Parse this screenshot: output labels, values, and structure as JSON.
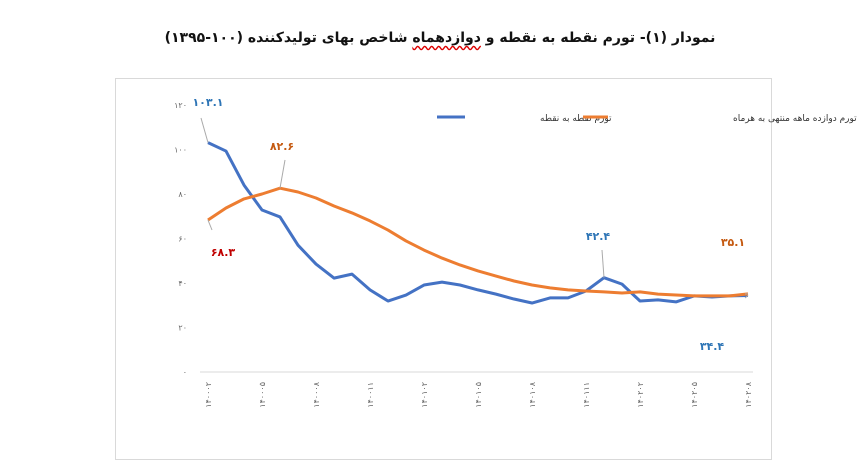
{
  "title": {
    "before": "نمودار (۱)- تورم نقطه به نقطه و ",
    "underlined": "دوازدهماه",
    "after": " شاخص بهای تولیدکننده (۱۰۰-۱۳۹۵)"
  },
  "chart_data": {
    "type": "line",
    "title": "نمودار (۱)- تورم نقطه به نقطه و دوازدهماه شاخص بهای تولیدکننده (۱۰۰-۱۳۹۵)",
    "ylim": [
      0,
      120
    ],
    "yticks": [
      "۰",
      "۲۰",
      "۴۰",
      "۶۰",
      "۸۰",
      "۱۰۰",
      "۱۲۰"
    ],
    "ytick_values": [
      0,
      20,
      40,
      60,
      80,
      100,
      120
    ],
    "x_count": 31,
    "xtick_labels": [
      "۱۴۰۰۰۲",
      "۱۴۰۰۰۵",
      "۱۴۰۰۰۸",
      "۱۴۰۰۱۱",
      "۱۴۰۱۰۲",
      "۱۴۰۱۰۵",
      "۱۴۰۱۰۸",
      "۱۴۰۱۱۱",
      "۱۴۰۲۰۲",
      "۱۴۰۲۰۵",
      "۱۴۰۲۰۸"
    ],
    "grid": false,
    "legend": "top-right",
    "series": [
      {
        "name": "تورم نقطه به نقطه",
        "color": "#4472c4",
        "values": [
          103.1,
          99.3,
          84,
          72.8,
          69.7,
          57,
          48.5,
          42.2,
          44,
          36.9,
          31.9,
          34.6,
          39.1,
          40.4,
          39.1,
          36.9,
          35,
          32.8,
          31,
          33.3,
          33.3,
          36.4,
          42.4,
          39.5,
          31.9,
          32.4,
          31.5,
          34.2,
          33.7,
          34.2,
          34.4
        ]
      },
      {
        "name": "تورم دوازده ماهه منتهی به هرماه",
        "color": "#ed7d31",
        "values": [
          68.3,
          73.7,
          77.8,
          80,
          82.6,
          80.9,
          78.2,
          74.6,
          71.5,
          67.9,
          63.8,
          58.9,
          54.8,
          51.2,
          48.1,
          45.4,
          43.1,
          40.9,
          39.1,
          37.8,
          36.9,
          36.4,
          36,
          35.5,
          36,
          35,
          34.6,
          34.2,
          34.2,
          34.2,
          35.1
        ]
      }
    ],
    "annotations": [
      {
        "text": "۱۰۳.۱",
        "series": 0,
        "index": 0,
        "color": "#2e75b6"
      },
      {
        "text": "۸۲.۶",
        "series": 1,
        "index": 4,
        "color": "#c55a11"
      },
      {
        "text": "۶۸.۳",
        "series": 1,
        "index": 0,
        "color": "#c00000"
      },
      {
        "text": "۴۲.۴",
        "series": 0,
        "index": 22,
        "color": "#2e75b6"
      },
      {
        "text": "۳۵.۱",
        "series": 1,
        "index": 30,
        "color": "#c55a11"
      },
      {
        "text": "۳۴.۴",
        "series": 0,
        "index": 30,
        "color": "#2e75b6"
      }
    ]
  }
}
